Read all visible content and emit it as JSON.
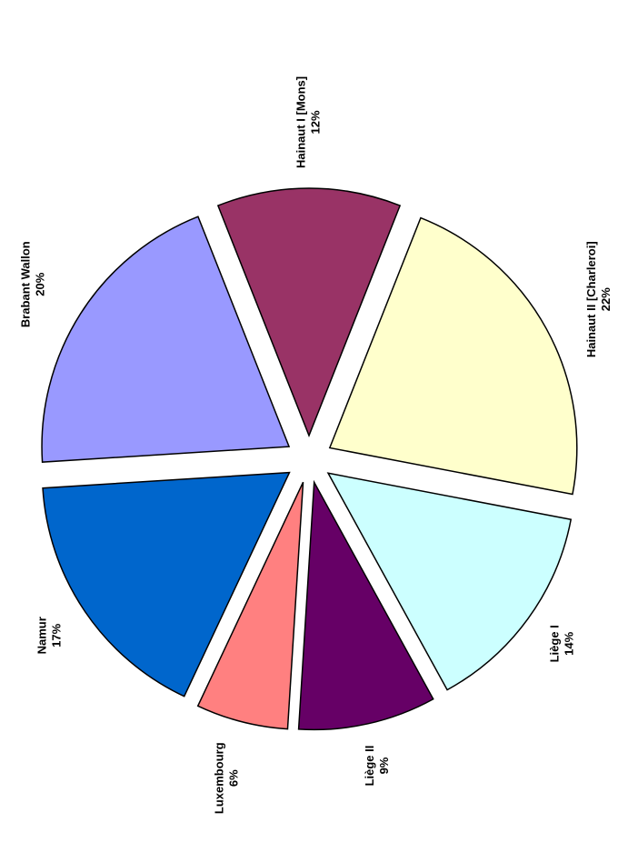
{
  "chart_data": {
    "type": "pie",
    "categories": [
      "Hainaut I [Mons]",
      "Hainaut II [Charleroi]",
      "Liège I",
      "Liège II",
      "Luxembourg",
      "Namur",
      "Brabant Wallon"
    ],
    "values": [
      12,
      22,
      14,
      9,
      6,
      17,
      20
    ],
    "value_labels": [
      "12%",
      "22%",
      "14%",
      "9%",
      "6%",
      "17%",
      "20%"
    ],
    "colors": [
      "#993366",
      "#FFFFCC",
      "#CCFFFF",
      "#660066",
      "#FF8080",
      "#0066CC",
      "#9999FF"
    ]
  }
}
